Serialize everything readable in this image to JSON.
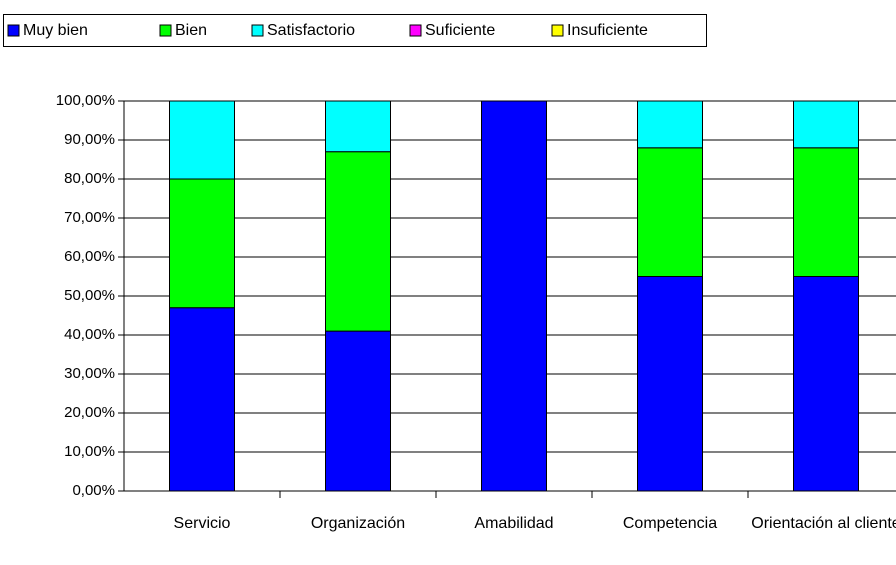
{
  "chart_data": {
    "type": "stacked_bar",
    "categories": [
      "Servicio",
      "Organización",
      "Amabilidad",
      "Competencia",
      "Orientación al cliente"
    ],
    "series": [
      {
        "name": "Muy bien",
        "color": "#0000ff",
        "values": [
          47,
          41,
          100,
          55,
          55
        ]
      },
      {
        "name": "Bien",
        "color": "#00ff00",
        "values": [
          33,
          46,
          0,
          33,
          33
        ]
      },
      {
        "name": "Satisfactorio",
        "color": "#00ffff",
        "values": [
          20,
          13,
          0,
          12,
          12
        ]
      },
      {
        "name": "Suficiente",
        "color": "#ff00ff",
        "values": [
          0,
          0,
          0,
          0,
          0
        ]
      },
      {
        "name": "Insuficiente",
        "color": "#ffff00",
        "values": [
          0,
          0,
          0,
          0,
          0
        ]
      }
    ],
    "ylim": [
      0,
      100
    ],
    "yticks": [
      {
        "value": 0,
        "label": "0,00%"
      },
      {
        "value": 10,
        "label": "10,00%"
      },
      {
        "value": 20,
        "label": "20,00%"
      },
      {
        "value": 30,
        "label": "30,00%"
      },
      {
        "value": 40,
        "label": "40,00%"
      },
      {
        "value": 50,
        "label": "50,00%"
      },
      {
        "value": 60,
        "label": "60,00%"
      },
      {
        "value": 70,
        "label": "70,00%"
      },
      {
        "value": 80,
        "label": "80,00%"
      },
      {
        "value": 90,
        "label": "90,00%"
      },
      {
        "value": 100,
        "label": "100,00%"
      }
    ],
    "grid": true,
    "legend": "top"
  }
}
